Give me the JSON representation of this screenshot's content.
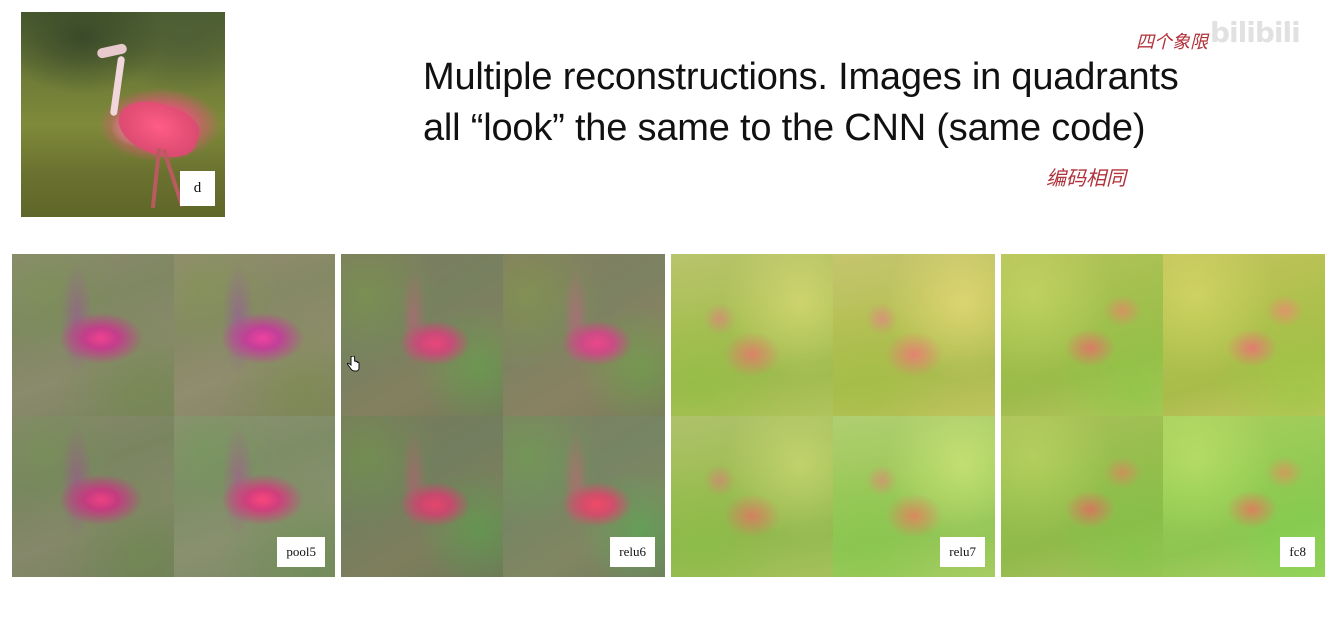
{
  "slide": {
    "title_line1": "Multiple reconstructions. Images in quadrants",
    "title_line2": "all “look” the same to the CNN (same code)"
  },
  "original_image": {
    "label": "d"
  },
  "annotations": {
    "top_note": "四个象限",
    "mid_note": "编码相同"
  },
  "watermark": {
    "text": "bilibili"
  },
  "panels": [
    {
      "label": "pool5"
    },
    {
      "label": "relu6"
    },
    {
      "label": "relu7"
    },
    {
      "label": "fc8"
    }
  ],
  "icons": {
    "cursor": "hand-cursor-icon"
  }
}
